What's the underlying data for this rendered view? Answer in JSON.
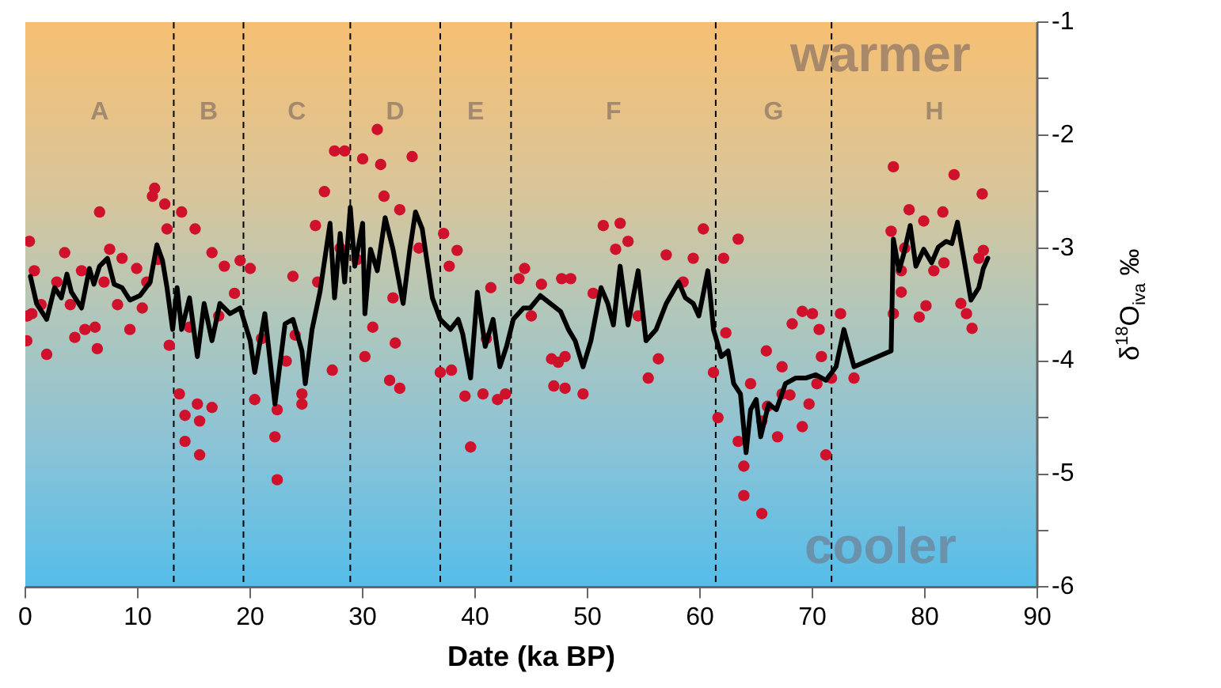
{
  "chart_data": {
    "type": "scatter",
    "xlabel": "Date (ka BP)",
    "ylabel": "δ$^{18}$O$_{iva}$ ‰",
    "xlim": [
      0,
      90
    ],
    "xticks": [
      0,
      10,
      20,
      30,
      40,
      50,
      60,
      70,
      80,
      90
    ],
    "ylim": [
      -6,
      -1
    ],
    "yticks": [
      -6,
      {
        "value": -5.5,
        "label": null
      },
      -5,
      {
        "value": -4.5,
        "label": null
      },
      -4,
      {
        "value": -3.5,
        "label": null
      },
      -3,
      {
        "value": -2.5,
        "label": null
      },
      -2,
      {
        "value": -1.5,
        "label": null
      },
      -1
    ],
    "grid": false,
    "legend": false,
    "marker": "circle",
    "ref_lines": [
      {
        "axis": "x",
        "value": 13.2,
        "color": "#000000",
        "line_style": "dashed"
      },
      {
        "axis": "x",
        "value": 19.4,
        "color": "#000000",
        "line_style": "dashed"
      },
      {
        "axis": "x",
        "value": 28.9,
        "color": "#000000",
        "line_style": "dashed"
      },
      {
        "axis": "x",
        "value": 36.9,
        "color": "#000000",
        "line_style": "dashed"
      },
      {
        "axis": "x",
        "value": 43.2,
        "color": "#000000",
        "line_style": "dashed"
      },
      {
        "axis": "x",
        "value": 61.4,
        "color": "#000000",
        "line_style": "dashed"
      },
      {
        "axis": "x",
        "value": 71.7,
        "color": "#000000",
        "line_style": "dashed"
      }
    ],
    "annotations": [
      "warmer",
      "cooler",
      "A",
      "B",
      "C",
      "D",
      "E",
      "F",
      "G",
      "H"
    ],
    "series": [
      {
        "type": "scatter",
        "color": "#d0112b",
        "x": [
          0.36,
          0.13,
          0.58,
          1.9,
          3.5,
          4.4,
          5.3,
          6.2,
          6.4,
          6.6,
          7.5,
          8.6,
          9.3,
          9.9,
          10.4,
          11.3,
          11.5,
          12.4,
          12.6,
          13.9,
          15.1,
          16.6,
          12.8,
          13.7,
          14.2,
          14.2,
          15.3,
          15.5,
          15.5,
          16.6,
          17.7,
          19.1,
          20.0,
          20.4,
          22.2,
          22.4,
          23.8,
          24.0,
          22.4,
          24.6,
          25.8,
          26.6,
          27.5,
          28.4,
          30.0,
          31.3,
          31.6,
          31.9,
          34.4,
          33.3,
          37.2,
          38.4,
          37.7,
          32.4,
          33.3,
          32.9,
          30.2,
          27.3,
          24.6,
          36.9,
          37.9,
          39.1,
          39.6,
          40.7,
          42.0,
          42.7,
          41.4,
          44.4,
          45.9,
          46.8,
          47.0,
          47.4,
          47.7,
          43.9,
          32.7,
          30.9,
          51.4,
          52.9,
          53.6,
          52.5,
          48.5,
          48.0,
          49.6,
          48.0,
          55.4,
          56.3,
          57.0,
          59.4,
          60.3,
          63.4,
          62.1,
          62.3,
          61.2,
          61.6,
          63.4,
          63.9,
          63.9,
          65.9,
          67.3,
          68.2,
          69.1,
          70.0,
          70.6,
          70.8,
          69.7,
          69.1,
          66.9,
          65.5,
          71.2,
          72.5,
          67.3,
          65.5,
          77.2,
          82.6,
          85.1,
          78.6,
          81.6,
          79.9,
          77.0,
          77.9,
          77.9,
          77.2,
          79.5,
          80.1,
          81.7,
          83.2,
          83.7,
          84.2,
          84.8,
          85.2,
          73.7,
          71.7,
          0.2,
          0.8,
          1.4,
          2.8,
          4.0,
          5.0,
          7.0,
          8.2,
          10.8,
          11.8,
          14.6,
          17.2,
          18.6,
          21.0,
          23.2,
          26.0,
          28.0,
          29.5,
          35.0,
          41.0,
          45.0,
          50.5,
          54.5,
          58.5,
          64.5,
          66.0,
          68.0,
          70.4,
          78.2,
          80.8
        ],
        "values": [
          -2.94,
          -3.82,
          -3.58,
          -3.94,
          -3.04,
          -3.79,
          -3.72,
          -3.7,
          -3.89,
          -2.68,
          -3.01,
          -3.09,
          -3.72,
          -3.18,
          -3.53,
          -2.54,
          -2.47,
          -2.61,
          -2.83,
          -2.68,
          -2.83,
          -3.04,
          -3.86,
          -4.29,
          -4.48,
          -4.71,
          -4.38,
          -4.53,
          -4.83,
          -4.41,
          -3.16,
          -3.11,
          -3.18,
          -4.34,
          -4.67,
          -5.05,
          -3.25,
          -3.77,
          -4.43,
          -4.29,
          -2.8,
          -2.5,
          -2.14,
          -2.14,
          -2.21,
          -1.95,
          -2.26,
          -2.54,
          -2.19,
          -2.66,
          -2.87,
          -3.02,
          -3.16,
          -4.17,
          -4.24,
          -3.84,
          -3.96,
          -4.08,
          -4.38,
          -4.1,
          -4.08,
          -4.31,
          -4.76,
          -4.29,
          -4.34,
          -4.29,
          -3.35,
          -3.18,
          -3.32,
          -3.98,
          -4.22,
          -4.01,
          -3.27,
          -3.27,
          -3.44,
          -3.7,
          -2.8,
          -2.78,
          -2.94,
          -3.01,
          -3.27,
          -3.96,
          -4.29,
          -4.24,
          -4.15,
          -3.98,
          -3.06,
          -3.09,
          -2.83,
          -2.92,
          -3.09,
          -3.75,
          -4.1,
          -4.5,
          -4.71,
          -4.93,
          -5.19,
          -3.91,
          -4.05,
          -3.67,
          -3.56,
          -3.58,
          -3.72,
          -3.96,
          -4.38,
          -4.58,
          -4.67,
          -4.53,
          -4.83,
          -3.58,
          -4.29,
          -5.35,
          -2.28,
          -2.35,
          -2.52,
          -2.66,
          -2.68,
          -2.76,
          -2.85,
          -3.2,
          -3.39,
          -3.58,
          -3.61,
          -3.51,
          -3.13,
          -3.49,
          -3.58,
          -3.71,
          -3.09,
          -3.02,
          -4.15,
          -4.15,
          -3.6,
          -3.2,
          -3.5,
          -3.3,
          -3.5,
          -3.2,
          -3.3,
          -3.5,
          -3.3,
          -3.1,
          -3.7,
          -3.6,
          -3.4,
          -3.8,
          -4.0,
          -3.3,
          -3.0,
          -3.1,
          -3.0,
          -3.8,
          -3.6,
          -3.4,
          -3.6,
          -3.3,
          -4.2,
          -4.4,
          -4.3,
          -4.2,
          -3.0,
          -3.2
        ]
      },
      {
        "type": "line",
        "color": "#000000",
        "marker": "none",
        "x": [
          0.45,
          1.0,
          1.9,
          2.6,
          3.2,
          3.7,
          4.1,
          5.0,
          5.7,
          6.1,
          6.6,
          7.3,
          7.9,
          8.6,
          9.3,
          10.2,
          11.1,
          11.7,
          12.2,
          12.6,
          13.1,
          13.5,
          13.9,
          14.6,
          15.3,
          15.9,
          16.6,
          17.3,
          18.2,
          19.1,
          20.0,
          20.4,
          21.3,
          22.2,
          23.1,
          23.8,
          24.6,
          24.9,
          25.5,
          26.2,
          27.1,
          27.5,
          28.0,
          28.4,
          28.9,
          29.3,
          30.0,
          30.2,
          30.7,
          31.3,
          32.0,
          32.7,
          33.6,
          34.2,
          34.7,
          35.3,
          36.2,
          36.9,
          37.8,
          38.5,
          38.9,
          39.6,
          40.2,
          40.9,
          41.6,
          42.2,
          42.8,
          43.4,
          44.3,
          44.9,
          45.8,
          46.7,
          47.6,
          48.3,
          48.9,
          49.6,
          50.3,
          51.2,
          51.8,
          52.3,
          52.9,
          53.6,
          54.5,
          55.2,
          56.1,
          57.0,
          58.1,
          58.7,
          59.4,
          59.9,
          60.7,
          61.2,
          61.9,
          62.5,
          63.0,
          63.6,
          64.1,
          64.5,
          65.0,
          65.4,
          66.1,
          66.8,
          67.6,
          68.5,
          69.4,
          70.3,
          71.2,
          72.1,
          72.8,
          73.7,
          77.0,
          77.2,
          77.7,
          78.1,
          78.7,
          79.2,
          79.9,
          80.6,
          81.2,
          81.9,
          82.4,
          82.9,
          83.5,
          84.1,
          84.8,
          85.2,
          85.6
        ],
        "values": [
          -3.25,
          -3.49,
          -3.63,
          -3.35,
          -3.44,
          -3.23,
          -3.39,
          -3.53,
          -3.18,
          -3.32,
          -3.16,
          -3.09,
          -3.32,
          -3.35,
          -3.46,
          -3.42,
          -3.3,
          -2.97,
          -3.11,
          -3.35,
          -3.72,
          -3.35,
          -3.72,
          -3.44,
          -3.96,
          -3.49,
          -3.82,
          -3.49,
          -3.58,
          -3.53,
          -3.82,
          -4.1,
          -3.58,
          -4.38,
          -3.67,
          -3.63,
          -3.91,
          -4.2,
          -3.72,
          -3.39,
          -2.78,
          -3.44,
          -2.87,
          -3.3,
          -2.64,
          -3.16,
          -2.78,
          -3.58,
          -3.01,
          -3.2,
          -2.73,
          -3.01,
          -3.49,
          -3.01,
          -2.68,
          -2.83,
          -3.44,
          -3.63,
          -3.72,
          -3.63,
          -3.76,
          -4.15,
          -3.39,
          -3.87,
          -3.63,
          -4.05,
          -3.87,
          -3.63,
          -3.53,
          -3.53,
          -3.42,
          -3.49,
          -3.56,
          -3.72,
          -3.82,
          -4.05,
          -3.82,
          -3.35,
          -3.49,
          -3.68,
          -3.16,
          -3.68,
          -3.2,
          -3.82,
          -3.72,
          -3.49,
          -3.3,
          -3.44,
          -3.49,
          -3.6,
          -3.2,
          -3.72,
          -3.96,
          -3.91,
          -4.2,
          -4.29,
          -4.81,
          -4.43,
          -4.34,
          -4.67,
          -4.38,
          -4.43,
          -4.2,
          -4.15,
          -4.15,
          -4.12,
          -4.17,
          -4.05,
          -3.72,
          -4.05,
          -3.91,
          -2.92,
          -3.2,
          -3.06,
          -2.8,
          -3.16,
          -3.01,
          -3.13,
          -2.99,
          -2.94,
          -2.96,
          -2.77,
          -3.11,
          -3.46,
          -3.35,
          -3.18,
          -3.09
        ]
      }
    ]
  }
}
